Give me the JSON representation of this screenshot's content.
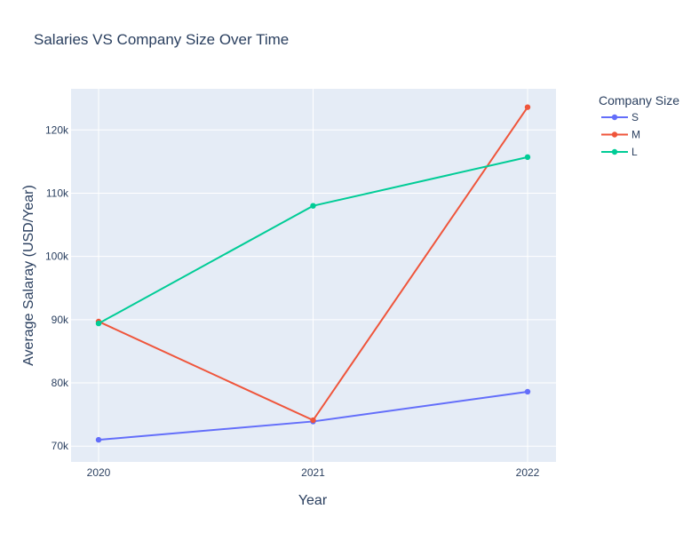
{
  "chart_data": {
    "type": "line",
    "title": "Salaries VS Company Size Over Time",
    "xlabel": "Year",
    "ylabel": "Average Salaray (USD/Year)",
    "x": [
      "2020",
      "2021",
      "2022"
    ],
    "ylim": [
      67500,
      126500
    ],
    "yticks": [
      70000,
      80000,
      90000,
      100000,
      110000,
      120000
    ],
    "ytick_labels": [
      "70k",
      "80k",
      "90k",
      "100k",
      "110k",
      "120k"
    ],
    "grid": true,
    "legend": {
      "title": "Company Size",
      "position": "top-right"
    },
    "series": [
      {
        "name": "S",
        "color": "#636efa",
        "values": [
          71000,
          73900,
          78600
        ]
      },
      {
        "name": "M",
        "color": "#ef553b",
        "values": [
          89700,
          74100,
          123600
        ]
      },
      {
        "name": "L",
        "color": "#00cc96",
        "values": [
          89400,
          108000,
          115700
        ]
      }
    ],
    "plot_bg": "#e5ecf6"
  }
}
